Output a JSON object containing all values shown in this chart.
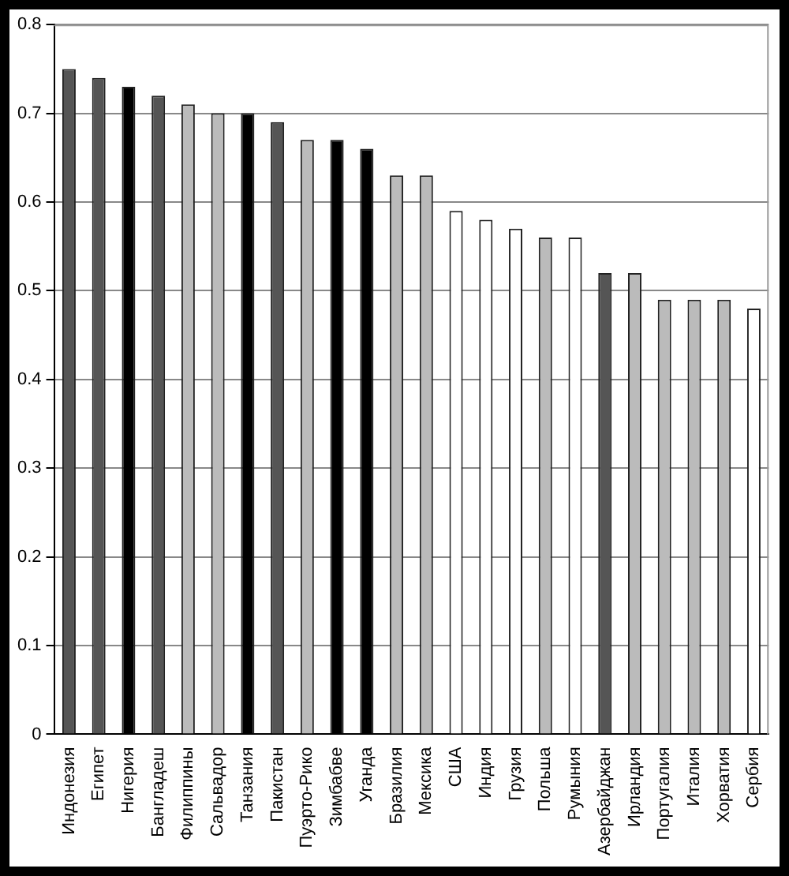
{
  "chart_data": {
    "type": "bar",
    "categories": [
      "Индонезия",
      "Египет",
      "Нигерия",
      "Бангладеш",
      "Филиппины",
      "Сальвадор",
      "Танзания",
      "Пакистан",
      "Пуэрто-Рико",
      "Зимбабве",
      "Уганда",
      "Бразилия",
      "Мексика",
      "США",
      "Индия",
      "Грузия",
      "Польша",
      "Румыния",
      "Азербайджан",
      "Ирландия",
      "Португалия",
      "Италия",
      "Хорватия",
      "Сербия"
    ],
    "values": [
      0.75,
      0.74,
      0.73,
      0.72,
      0.71,
      0.7,
      0.7,
      0.69,
      0.67,
      0.67,
      0.66,
      0.63,
      0.63,
      0.59,
      0.58,
      0.57,
      0.56,
      0.56,
      0.52,
      0.52,
      0.49,
      0.49,
      0.49,
      0.48
    ],
    "colors": [
      "#555555",
      "#555555",
      "#000000",
      "#555555",
      "#bbbbbb",
      "#bbbbbb",
      "#000000",
      "#555555",
      "#bbbbbb",
      "#000000",
      "#000000",
      "#bbbbbb",
      "#bbbbbb",
      "#ffffff",
      "#ffffff",
      "#ffffff",
      "#bbbbbb",
      "#ffffff",
      "#555555",
      "#bbbbbb",
      "#bbbbbb",
      "#bbbbbb",
      "#bbbbbb",
      "#ffffff"
    ],
    "ylim": [
      0,
      0.8
    ],
    "yticks": [
      0,
      0.1,
      0.2,
      0.3,
      0.4,
      0.5,
      0.6,
      0.7,
      0.8
    ],
    "grid": "y",
    "legend": false
  }
}
